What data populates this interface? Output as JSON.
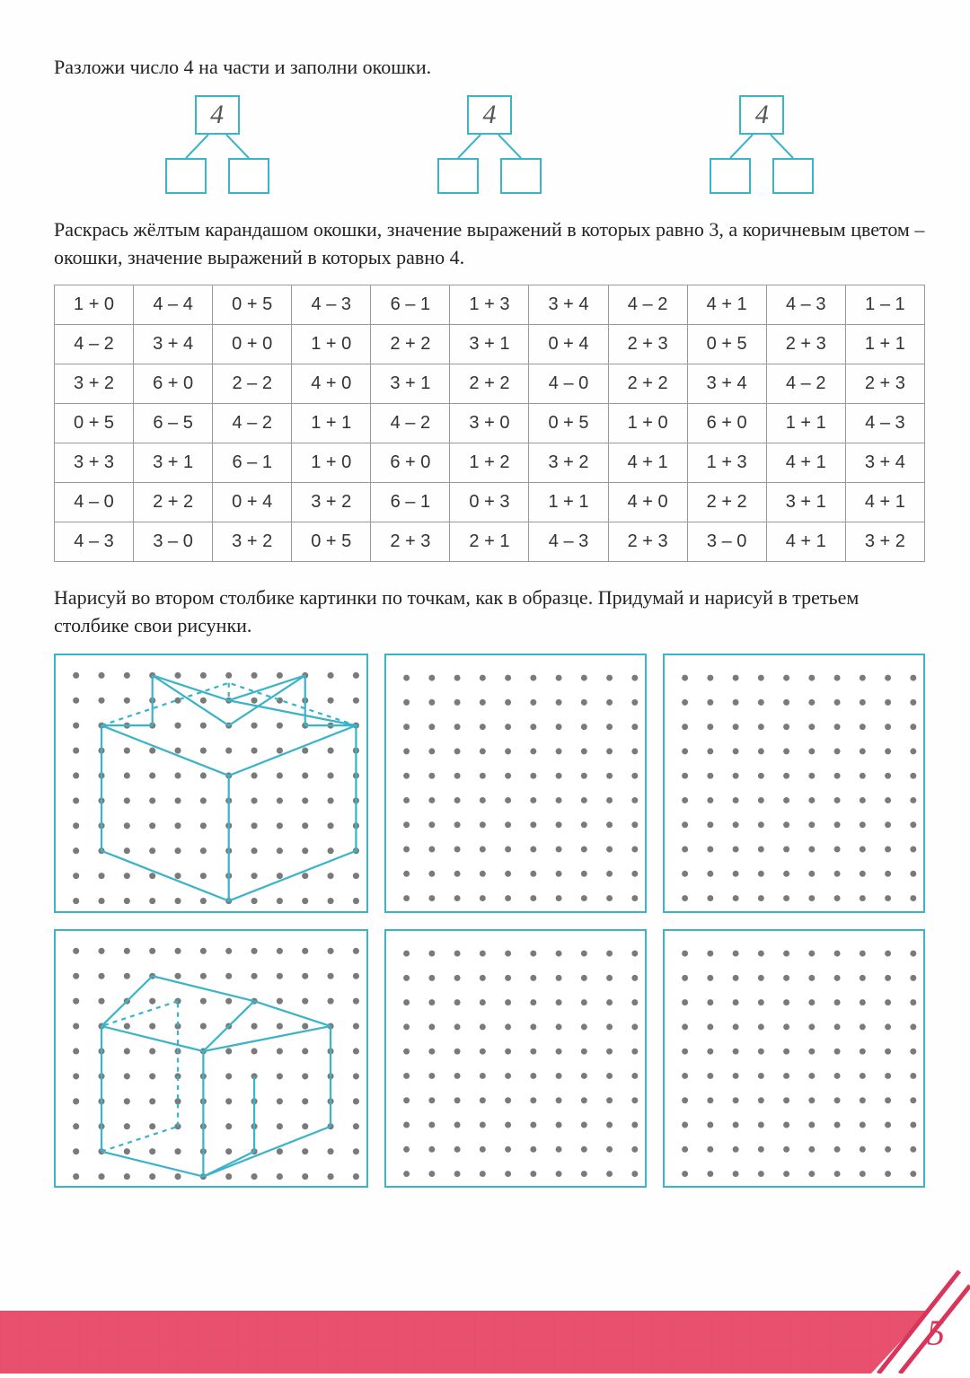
{
  "task1": {
    "instruction": "Разложи число 4 на части и заполни окошки.",
    "top_value": "4",
    "tree_count": 3,
    "box_border_color": "#3bb3c8",
    "handwritten_color": "#555"
  },
  "task2": {
    "instruction": "Раскрась жёлтым карандашом окошки, значение выражений в которых равно 3, а коричневым цветом – окошки, значение выражений в которых равно 4.",
    "columns": 11,
    "rows": [
      [
        "1 + 0",
        "4 – 4",
        "0 + 5",
        "4 – 3",
        "6 – 1",
        "1 + 3",
        "3 + 4",
        "4 – 2",
        "4 + 1",
        "4 – 3",
        "1 – 1"
      ],
      [
        "4 – 2",
        "3 + 4",
        "0 + 0",
        "1 + 0",
        "2 + 2",
        "3 + 1",
        "0 + 4",
        "2 + 3",
        "0 + 5",
        "2 + 3",
        "1 + 1"
      ],
      [
        "3 + 2",
        "6 + 0",
        "2 – 2",
        "4 + 0",
        "3 + 1",
        "2 + 2",
        "4 – 0",
        "2 + 2",
        "3 + 4",
        "4 – 2",
        "2 + 3"
      ],
      [
        "0 + 5",
        "6 – 5",
        "4 – 2",
        "1 + 1",
        "4 – 2",
        "3 + 0",
        "0 + 5",
        "1 + 0",
        "6 + 0",
        "1 + 1",
        "4 – 3"
      ],
      [
        "3 + 3",
        "3 + 1",
        "6 – 1",
        "1 + 0",
        "6 + 0",
        "1 + 2",
        "3 + 2",
        "4 + 1",
        "1 + 3",
        "4 + 1",
        "3 + 4"
      ],
      [
        "4 – 0",
        "2 + 2",
        "0 + 4",
        "3 + 2",
        "6 – 1",
        "0 + 3",
        "1 + 1",
        "4 + 0",
        "2 + 2",
        "3 + 1",
        "4 + 1"
      ],
      [
        "4 – 3",
        "3 – 0",
        "3 + 2",
        "0 + 5",
        "2 + 3",
        "2 + 1",
        "4 – 3",
        "2 + 3",
        "3 – 0",
        "4 + 1",
        "3 + 2"
      ]
    ],
    "border_color": "#999999",
    "cell_fontsize": 20
  },
  "task3": {
    "instruction": "Нарисуй во втором столбике картинки по точкам, как в образце. Придумай и нарисуй в третьем столбике свои рисунки.",
    "grid": {
      "rows": 2,
      "cols": 3,
      "dot_rows": 10,
      "dot_cols_wide": 12,
      "dot_cols_narrow": 10,
      "dot_color": "#7a7a7a",
      "dot_radius": 3.5,
      "border_color": "#3bb3c8",
      "line_color": "#3bb3c8",
      "line_width": 2.2
    },
    "shape1_points": "path data: cube-like isometric drawing in top-left grid",
    "shape2_points": "path data: open-box isometric drawing in bottom-left grid"
  },
  "footer": {
    "page_number": "5",
    "stripe_color": "#e8516d",
    "slash_color": "#d9345a",
    "pagenum_color": "#d9345a",
    "pagenum_fontsize": 40
  }
}
